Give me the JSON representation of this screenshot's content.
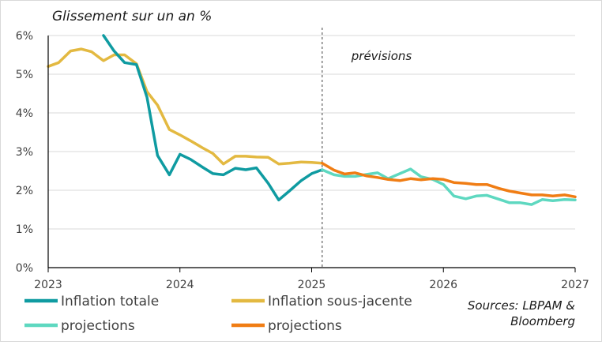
{
  "chart_data": {
    "type": "line",
    "title": "Glissement sur un an %",
    "annotation": "prévisions",
    "source_lines": [
      "Sources: LBPAM &",
      "Bloomberg"
    ],
    "xlim": [
      2023,
      2027
    ],
    "ylim": [
      0,
      6
    ],
    "x_ticks": [
      2023,
      2024,
      2025,
      2026,
      2027
    ],
    "x_tick_labels": [
      "2023",
      "2024",
      "2025",
      "2026",
      "2027"
    ],
    "y_ticks": [
      0,
      1,
      2,
      3,
      4,
      5,
      6
    ],
    "y_tick_labels": [
      "0%",
      "1%",
      "2%",
      "3%",
      "4%",
      "5%",
      "6%"
    ],
    "grid": "horizontal",
    "forecast_start_x": 2025.08,
    "legend_position": "bottom",
    "series": [
      {
        "name": "Inflation totale",
        "color": "#0f9ba1",
        "x": [
          2023.42,
          2023.5,
          2023.58,
          2023.67,
          2023.75,
          2023.83,
          2023.92,
          2024.0,
          2024.08,
          2024.17,
          2024.25,
          2024.33,
          2024.42,
          2024.5,
          2024.58,
          2024.67,
          2024.75,
          2024.83,
          2024.92,
          2025.0,
          2025.08
        ],
        "y": [
          6.0,
          5.6,
          5.3,
          5.25,
          4.4,
          2.9,
          2.4,
          2.93,
          2.8,
          2.6,
          2.43,
          2.4,
          2.57,
          2.53,
          2.58,
          2.18,
          1.75,
          1.98,
          2.25,
          2.43,
          2.53
        ]
      },
      {
        "name": "Inflation sous-jacente",
        "color": "#e3b941",
        "x": [
          2023.0,
          2023.08,
          2023.17,
          2023.25,
          2023.33,
          2023.42,
          2023.5,
          2023.58,
          2023.67,
          2023.75,
          2023.83,
          2023.92,
          2024.0,
          2024.08,
          2024.17,
          2024.25,
          2024.33,
          2024.42,
          2024.5,
          2024.58,
          2024.67,
          2024.75,
          2024.83,
          2024.92,
          2025.0,
          2025.08
        ],
        "y": [
          5.2,
          5.3,
          5.6,
          5.65,
          5.58,
          5.35,
          5.5,
          5.5,
          5.27,
          4.55,
          4.2,
          3.57,
          3.43,
          3.28,
          3.1,
          2.95,
          2.68,
          2.88,
          2.88,
          2.86,
          2.85,
          2.68,
          2.7,
          2.73,
          2.72,
          2.7
        ]
      },
      {
        "name": "projections",
        "color": "#5ed8c0",
        "x": [
          2025.08,
          2025.17,
          2025.25,
          2025.33,
          2025.42,
          2025.5,
          2025.58,
          2025.67,
          2025.75,
          2025.83,
          2025.92,
          2026.0,
          2026.08,
          2026.17,
          2026.25,
          2026.33,
          2026.42,
          2026.5,
          2026.58,
          2026.67,
          2026.75,
          2026.83,
          2026.92,
          2027.0
        ],
        "y": [
          2.53,
          2.4,
          2.36,
          2.36,
          2.41,
          2.45,
          2.3,
          2.43,
          2.55,
          2.35,
          2.28,
          2.15,
          1.85,
          1.78,
          1.85,
          1.87,
          1.77,
          1.68,
          1.68,
          1.63,
          1.76,
          1.73,
          1.76,
          1.75
        ]
      },
      {
        "name": "projections",
        "color": "#f07d14",
        "x": [
          2025.08,
          2025.17,
          2025.25,
          2025.33,
          2025.42,
          2025.5,
          2025.58,
          2025.67,
          2025.75,
          2025.83,
          2025.92,
          2026.0,
          2026.08,
          2026.17,
          2026.25,
          2026.33,
          2026.42,
          2026.5,
          2026.58,
          2026.67,
          2026.75,
          2026.83,
          2026.92,
          2027.0
        ],
        "y": [
          2.7,
          2.52,
          2.42,
          2.45,
          2.37,
          2.33,
          2.28,
          2.25,
          2.3,
          2.27,
          2.3,
          2.28,
          2.2,
          2.18,
          2.15,
          2.15,
          2.05,
          1.98,
          1.93,
          1.88,
          1.88,
          1.85,
          1.88,
          1.83
        ]
      }
    ]
  }
}
